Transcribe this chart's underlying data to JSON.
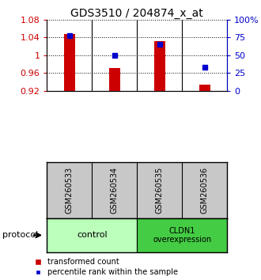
{
  "title": "GDS3510 / 204874_x_at",
  "samples": [
    "GSM260533",
    "GSM260534",
    "GSM260535",
    "GSM260536"
  ],
  "red_values": [
    1.047,
    0.972,
    1.032,
    0.935
  ],
  "blue_values": [
    78,
    50,
    65,
    33
  ],
  "ylim_left": [
    0.92,
    1.08
  ],
  "ylim_right": [
    0,
    100
  ],
  "yticks_left": [
    0.92,
    0.96,
    1.0,
    1.04,
    1.08
  ],
  "yticks_right": [
    0,
    25,
    50,
    75,
    100
  ],
  "ytick_labels_right": [
    "0",
    "25",
    "50",
    "75",
    "100%"
  ],
  "ytick_labels_left": [
    "0.92",
    "0.96",
    "1",
    "1.04",
    "1.08"
  ],
  "bar_color": "#cc0000",
  "dot_color": "#0000cc",
  "group_labels": [
    "control",
    "CLDN1\noverexpression"
  ],
  "group_color_light": "#bbffbb",
  "group_color_dark": "#44cc44",
  "protocol_label": "protocol",
  "legend_red": "transformed count",
  "legend_blue": "percentile rank within the sample",
  "bar_bottom": 0.92,
  "sample_box_color": "#c8c8c8",
  "title_fontsize": 10,
  "tick_fontsize": 8,
  "label_fontsize": 8,
  "bar_width": 0.25
}
